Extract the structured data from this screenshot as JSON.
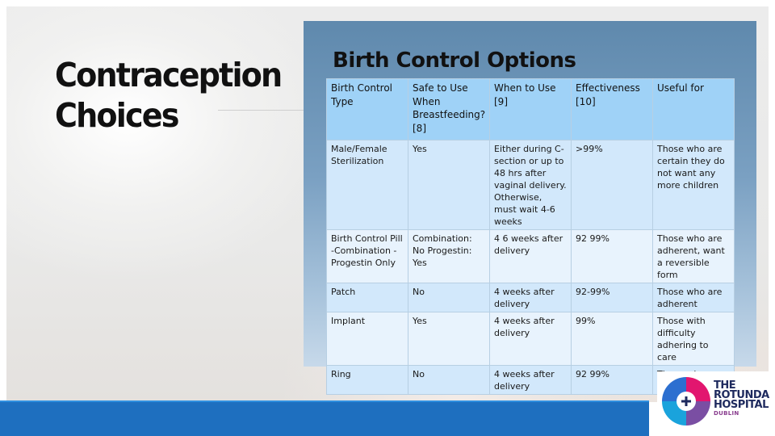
{
  "slide": {
    "title": "Contraception Choices"
  },
  "table_image": {
    "heading": "Birth Control Options",
    "headers": [
      "Birth Control Type",
      "Safe to Use When Breastfeeding? [8]",
      "When to Use [9]",
      "Effectiveness [10]",
      "Useful for"
    ],
    "rows": [
      [
        "Male/Female Sterilization",
        "Yes",
        "Either during C-section or up to 48 hrs after vaginal delivery. Otherwise, must wait 4-6 weeks",
        ">99%",
        "Those who are certain they do not want any more children"
      ],
      [
        "Birth Control Pill -Combination -Progestin Only",
        "Combination: No Progestin: Yes",
        "4 6 weeks after delivery",
        "92 99%",
        "Those who are adherent, want a reversible form"
      ],
      [
        "Patch",
        "No",
        "4 weeks after delivery",
        "92-99%",
        "Those who are adherent"
      ],
      [
        "Implant",
        "Yes",
        "4 weeks after delivery",
        "99%",
        "Those with difficulty adhering to care"
      ],
      [
        "Ring",
        "No",
        "4 weeks after delivery",
        "92 99%",
        "Those who are adherent"
      ]
    ]
  },
  "logo": {
    "line1": "THE",
    "line2": "ROTUNDA",
    "line3": "HOSPITAL",
    "line4": "DUBLIN"
  },
  "colors": {
    "bottom_band": "#1e6fbf",
    "header_cell": "#9fd2f7"
  }
}
